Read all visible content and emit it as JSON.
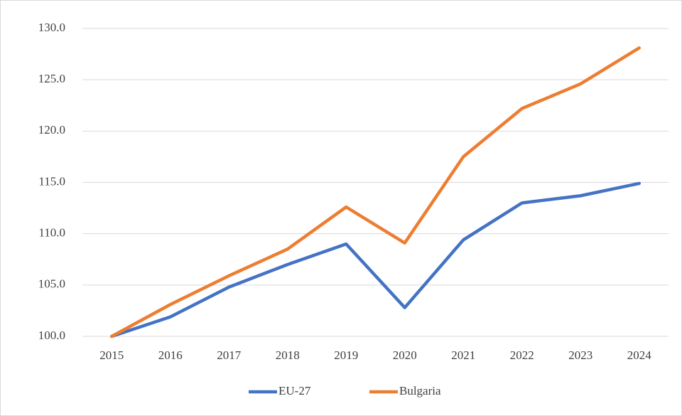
{
  "chart_data": {
    "type": "line",
    "categories": [
      "2015",
      "2016",
      "2017",
      "2018",
      "2019",
      "2020",
      "2021",
      "2022",
      "2023",
      "2024"
    ],
    "series": [
      {
        "name": "EU-27",
        "color": "#4472c4",
        "values": [
          100.0,
          101.9,
          104.8,
          107.0,
          109.0,
          102.8,
          109.4,
          113.0,
          113.7,
          114.9
        ]
      },
      {
        "name": "Bulgaria",
        "color": "#ed7d31",
        "values": [
          100.0,
          103.1,
          105.9,
          108.5,
          112.6,
          109.1,
          117.5,
          122.2,
          124.6,
          128.1
        ]
      }
    ],
    "ylim": [
      100,
      130
    ],
    "yticks": [
      {
        "value": 100,
        "label": "100.0"
      },
      {
        "value": 105,
        "label": "105.0"
      },
      {
        "value": 110,
        "label": "110.0"
      },
      {
        "value": 115,
        "label": "115.0"
      },
      {
        "value": 120,
        "label": "120.0"
      },
      {
        "value": 125,
        "label": "125.0"
      },
      {
        "value": 130,
        "label": "130.0"
      }
    ],
    "grid": true,
    "legend": "bottom"
  }
}
